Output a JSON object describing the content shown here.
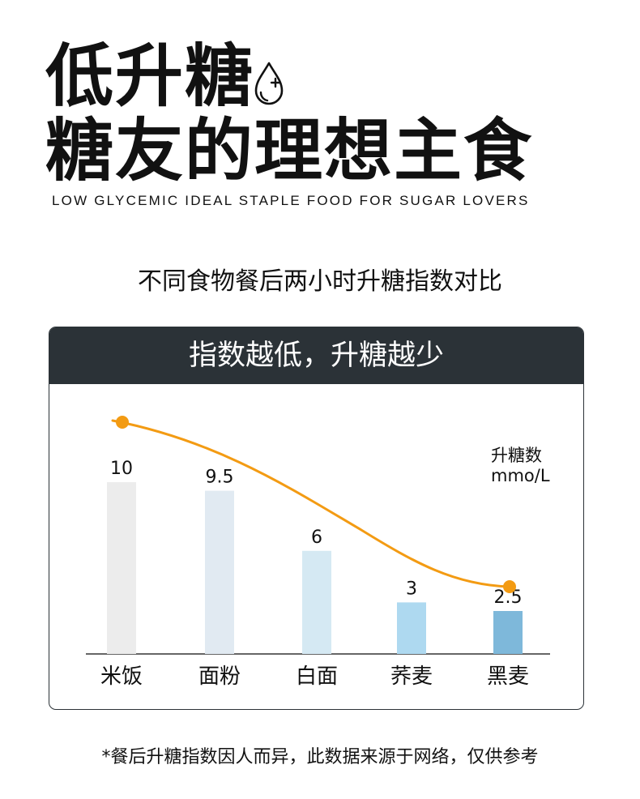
{
  "header": {
    "title_line1": "低升糖",
    "title_line2": "糖友的理想主食",
    "subtitle_en": "LOW GLYCEMIC IDEAL STAPLE FOOD FOR SUGAR LOVERS",
    "icon": "blood-drop-plus-icon"
  },
  "comparison_title": "不同食物餐后两小时升糖指数对比",
  "card": {
    "header": "指数越低，升糖越少"
  },
  "footnote": "*餐后升糖指数因人而异，此数据来源于网络，仅供参考",
  "chart_data": {
    "type": "bar",
    "categories": [
      "米饭",
      "面粉",
      "白面",
      "荞麦",
      "黑麦"
    ],
    "values": [
      10,
      9.5,
      6,
      3,
      2.5
    ],
    "value_labels": [
      "10",
      "9.5",
      "6",
      "3",
      "2.5"
    ],
    "ylabel": "升糖数",
    "yunit": "mmo/L",
    "ylim": [
      0,
      10
    ],
    "grid": false,
    "trend_line": true,
    "colors": {
      "bars": [
        "#ececec",
        "#e1eaf2",
        "#d5e9f3",
        "#aed9f0",
        "#7eb8da"
      ],
      "trend": "#f39b13",
      "axis": "#333333"
    }
  }
}
